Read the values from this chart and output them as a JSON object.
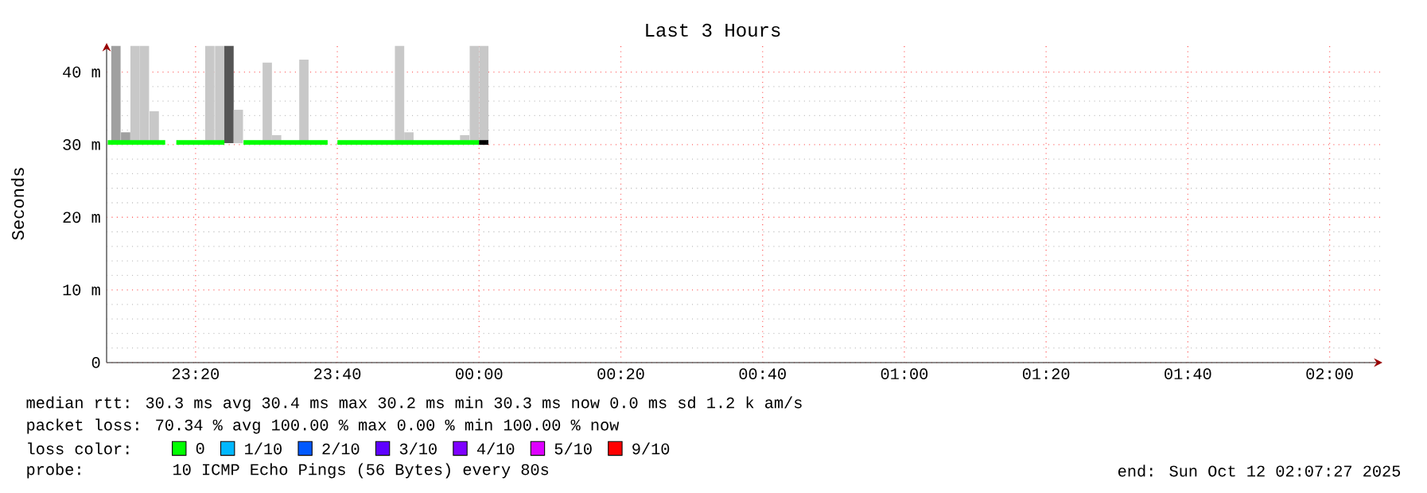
{
  "chart_data": {
    "type": "line",
    "title": "Last 3 Hours",
    "ylabel": "Seconds",
    "legend_title": "loss color:",
    "legend": "bottom",
    "grid": true,
    "xlim": [
      "2025-10-11T23:07:27",
      "2025-10-12T02:07:27"
    ],
    "ylim": [
      0,
      44
    ],
    "xticks": [
      {
        "value": "2025-10-11T23:20",
        "label": "23:20"
      },
      {
        "value": "2025-10-11T23:40",
        "label": "23:40"
      },
      {
        "value": "2025-10-12T00:00",
        "label": "00:00"
      },
      {
        "value": "2025-10-12T00:20",
        "label": "00:20"
      },
      {
        "value": "2025-10-12T00:40",
        "label": "00:40"
      },
      {
        "value": "2025-10-12T01:00",
        "label": "01:00"
      },
      {
        "value": "2025-10-12T01:20",
        "label": "01:20"
      },
      {
        "value": "2025-10-12T01:40",
        "label": "01:40"
      },
      {
        "value": "2025-10-12T02:00",
        "label": "02:00"
      }
    ],
    "yticks": [
      0,
      {
        "value": 10,
        "label": "10 m"
      },
      {
        "value": 20,
        "label": "20 m"
      },
      {
        "value": 30,
        "label": "30 m"
      },
      {
        "value": 40,
        "label": "40 m"
      }
    ],
    "series": [
      {
        "type": "bar",
        "x": [
          "2025-10-11T23:08:46",
          "2025-10-11T23:10:08",
          "2025-10-11T23:11:28",
          "2025-10-11T23:12:47",
          "2025-10-11T23:14:10",
          "2025-10-11T23:22:01",
          "2025-10-11T23:23:24",
          "2025-10-11T23:24:43",
          "2025-10-11T23:26:02",
          "2025-10-11T23:30:07",
          "2025-10-11T23:31:26",
          "2025-10-11T23:35:17",
          "2025-10-11T23:36:40",
          "2025-10-11T23:48:47",
          "2025-10-11T23:50:06",
          "2025-10-11T23:57:58",
          "2025-10-11T23:59:20",
          "2025-10-12T00:00:40"
        ],
        "base": [
          30.2,
          30.2,
          30.2,
          30.2,
          30.2,
          30.2,
          30.2,
          30.2,
          30.2,
          30.2,
          30.2,
          30.2,
          null,
          30.2,
          30.2,
          30.2,
          30.2,
          30.2
        ],
        "values": [
          13.4,
          1.5,
          13.4,
          13.4,
          4.4,
          13.4,
          13.4,
          13.4,
          4.6,
          11.1,
          1.1,
          11.5,
          null,
          13.4,
          1.5,
          1.1,
          13.4,
          13.4
        ],
        "colors": [
          "#a0a0a0",
          "#a0a0a0",
          "#c8c8c8",
          "#c8c8c8",
          "#c8c8c8",
          "#c8c8c8",
          "#c8c8c8",
          "#555555",
          "#c8c8c8",
          "#c8c8c8",
          "#c8c8c8",
          "#c8c8c8",
          "#c8c8c8",
          "#c8c8c8",
          "#c8c8c8",
          "#c8c8c8",
          "#c8c8c8",
          "#c8c8c8"
        ]
      },
      {
        "name": "0",
        "color": "#00ff00",
        "x": [
          "2025-10-11T23:07:37",
          "2025-10-11T23:15:43",
          "2025-10-11T23:16:30",
          "2025-10-11T23:17:17",
          "2025-10-11T23:24:04",
          "2025-10-11T23:25:23",
          "2025-10-11T23:26:46",
          "2025-10-11T23:38:38",
          "2025-10-11T23:39:18",
          "2025-10-11T23:40:01",
          "2025-10-12T00:00:00"
        ],
        "values": [
          30.3,
          30.3,
          null,
          30.3,
          30.3,
          null,
          30.3,
          30.3,
          null,
          30.3,
          30.3
        ]
      },
      {
        "color": "#000000",
        "x": [
          "2025-10-12T00:00:00",
          "2025-10-12T00:01:19"
        ],
        "values": [
          30.3,
          30.3
        ]
      },
      {
        "type": "line",
        "name": "1/10",
        "color": "#00b8ff"
      },
      {
        "type": "line",
        "name": "2/10",
        "color": "#0059ff"
      },
      {
        "type": "line",
        "name": "3/10",
        "color": "#5e00ff"
      },
      {
        "type": "line",
        "name": "4/10",
        "color": "#7e00ff"
      },
      {
        "type": "line",
        "name": "5/10",
        "color": "#dd00ff"
      },
      {
        "type": "line",
        "name": "9/10",
        "color": "#ff0000"
      }
    ],
    "annotations": [
      "median rtt:  30.3 ms avg  30.4 ms max  30.2 ms min  30.3 ms now  0.0 ms sd  1.2 k am/s",
      "packet loss: 70.34 % avg  100.00 % max  0.00 % min  100.00 % now",
      "probe:",
      "10 ICMP Echo Pings (56 Bytes) every 80s",
      "end: Sun Oct 12 02:07:27 2025"
    ]
  }
}
